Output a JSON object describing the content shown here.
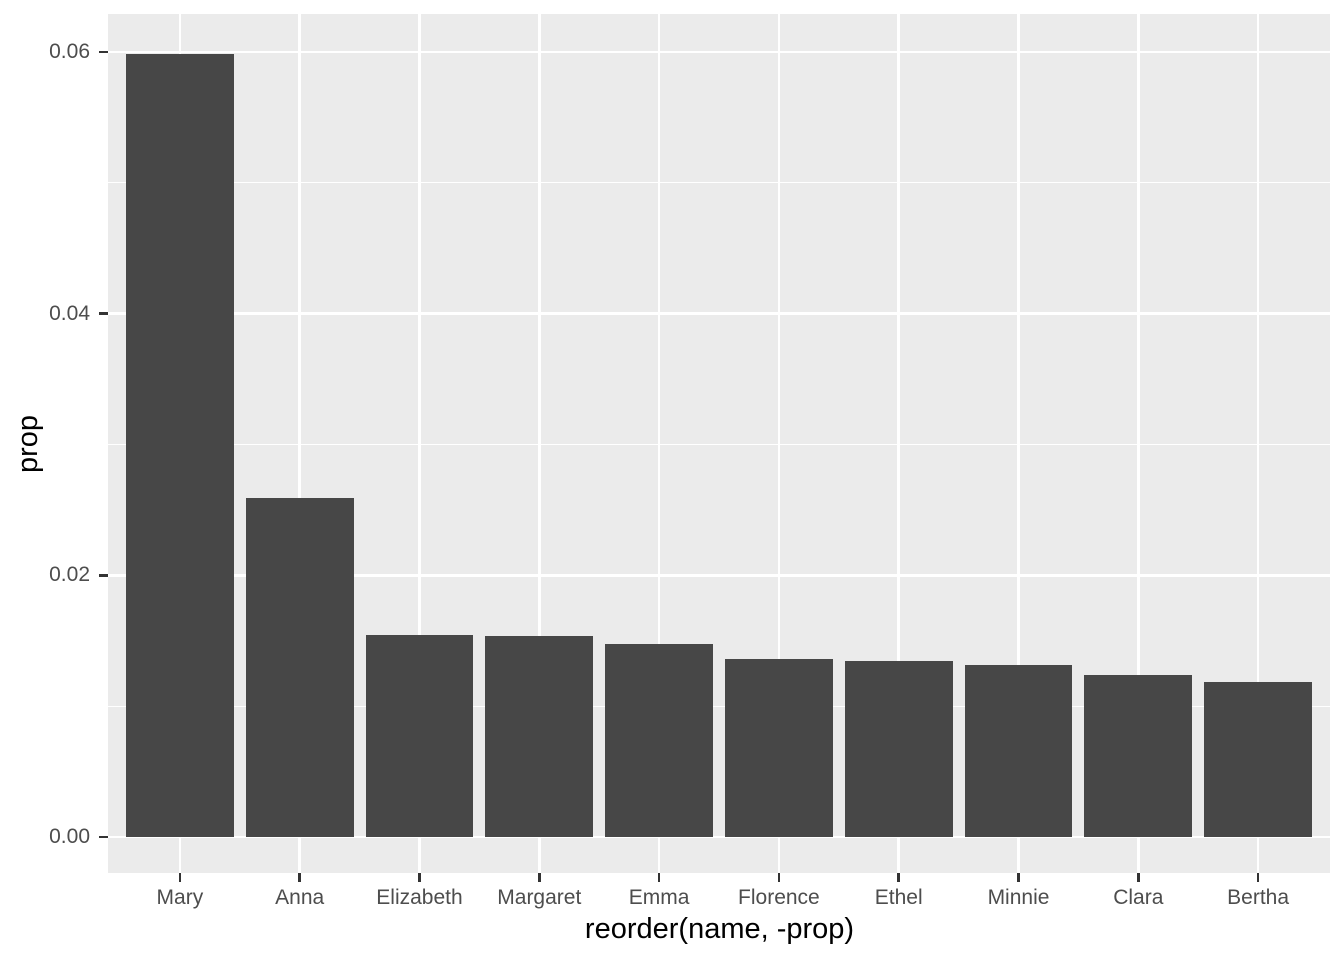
{
  "chart_data": {
    "type": "bar",
    "title": "",
    "xlabel": "reorder(name, -prop)",
    "ylabel": "prop",
    "categories": [
      "Mary",
      "Anna",
      "Elizabeth",
      "Margaret",
      "Emma",
      "Florence",
      "Ethel",
      "Minnie",
      "Clara",
      "Bertha"
    ],
    "values": [
      0.05988,
      0.02591,
      0.01547,
      0.01539,
      0.01478,
      0.01361,
      0.01348,
      0.01313,
      0.01238,
      0.01183
    ],
    "series_name": "prop",
    "ylim": [
      -0.003,
      0.0629
    ],
    "y_major_ticks": [
      0,
      0.02,
      0.04,
      0.06
    ],
    "y_tick_labels": [
      "0.00",
      "0.02",
      "0.04",
      "0.06"
    ],
    "y_minor_ticks": [
      0.01,
      0.03,
      0.05
    ],
    "grid": true,
    "legend_position": "none",
    "theme": "ggplot2-grey",
    "colors": {
      "bar_fill": "#474747",
      "panel_background": "#EBEBEB",
      "grid_major": "#FFFFFF",
      "grid_minor": "#FFFFFF",
      "axis_text": "#4D4D4D",
      "axis_title": "#000000",
      "tick_mark": "#333333",
      "figure_background": "#FFFFFF"
    }
  }
}
